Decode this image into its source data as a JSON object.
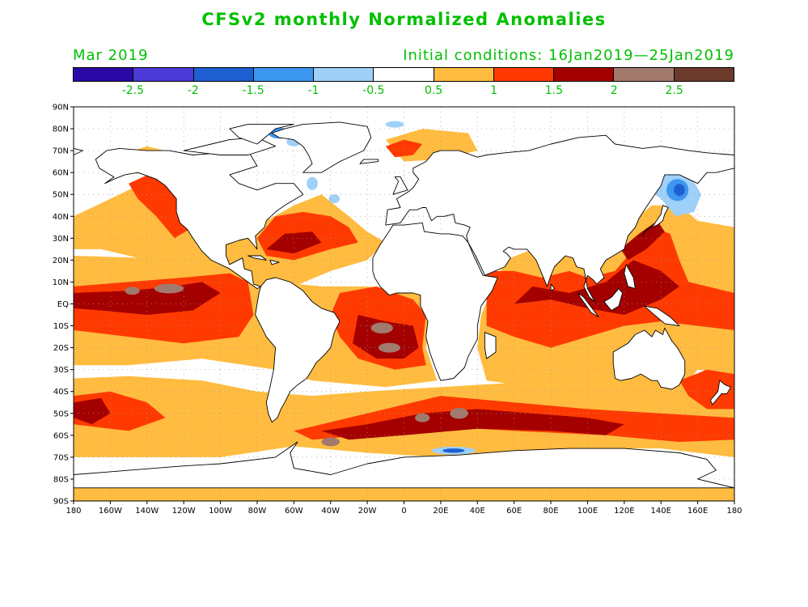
{
  "title": "CFSv2 monthly Normalized Anomalies",
  "month_label": "Mar 2019",
  "init_label": "Initial conditions: 16Jan2019—25Jan2019",
  "colorbar": {
    "colors": [
      "#2a0aa6",
      "#4b3ad6",
      "#1e5fd1",
      "#3c97f0",
      "#9fd0f8",
      "#ffffff",
      "#ffbc40",
      "#ff3a00",
      "#a40000",
      "#a27a6d",
      "#6b3a2a"
    ],
    "labels": [
      "-2.5",
      "-2",
      "-1.5",
      "-1",
      "-0.5",
      "0.5",
      "1",
      "1.5",
      "2",
      "2.5"
    ]
  },
  "map": {
    "lon_range": [
      -180,
      180
    ],
    "lat_range": [
      -90,
      90
    ],
    "lat_ticks": [
      "90N",
      "80N",
      "70N",
      "60N",
      "50N",
      "40N",
      "30N",
      "20N",
      "10N",
      "EQ",
      "10S",
      "20S",
      "30S",
      "40S",
      "50S",
      "60S",
      "70S",
      "80S",
      "90S"
    ],
    "lon_ticks": [
      "180",
      "160W",
      "140W",
      "120W",
      "100W",
      "80W",
      "60W",
      "40W",
      "20W",
      "0",
      "20E",
      "40E",
      "60E",
      "80E",
      "100E",
      "120E",
      "140E",
      "160E",
      "180"
    ],
    "colors": {
      "c05": "#ffbc40",
      "c10": "#ff3a00",
      "c15": "#a40000",
      "c20": "#a27a6d",
      "neg05": "#9fd0f8",
      "neg10": "#3c97f0",
      "neg15": "#1e5fd1",
      "coast": "#000000"
    }
  }
}
